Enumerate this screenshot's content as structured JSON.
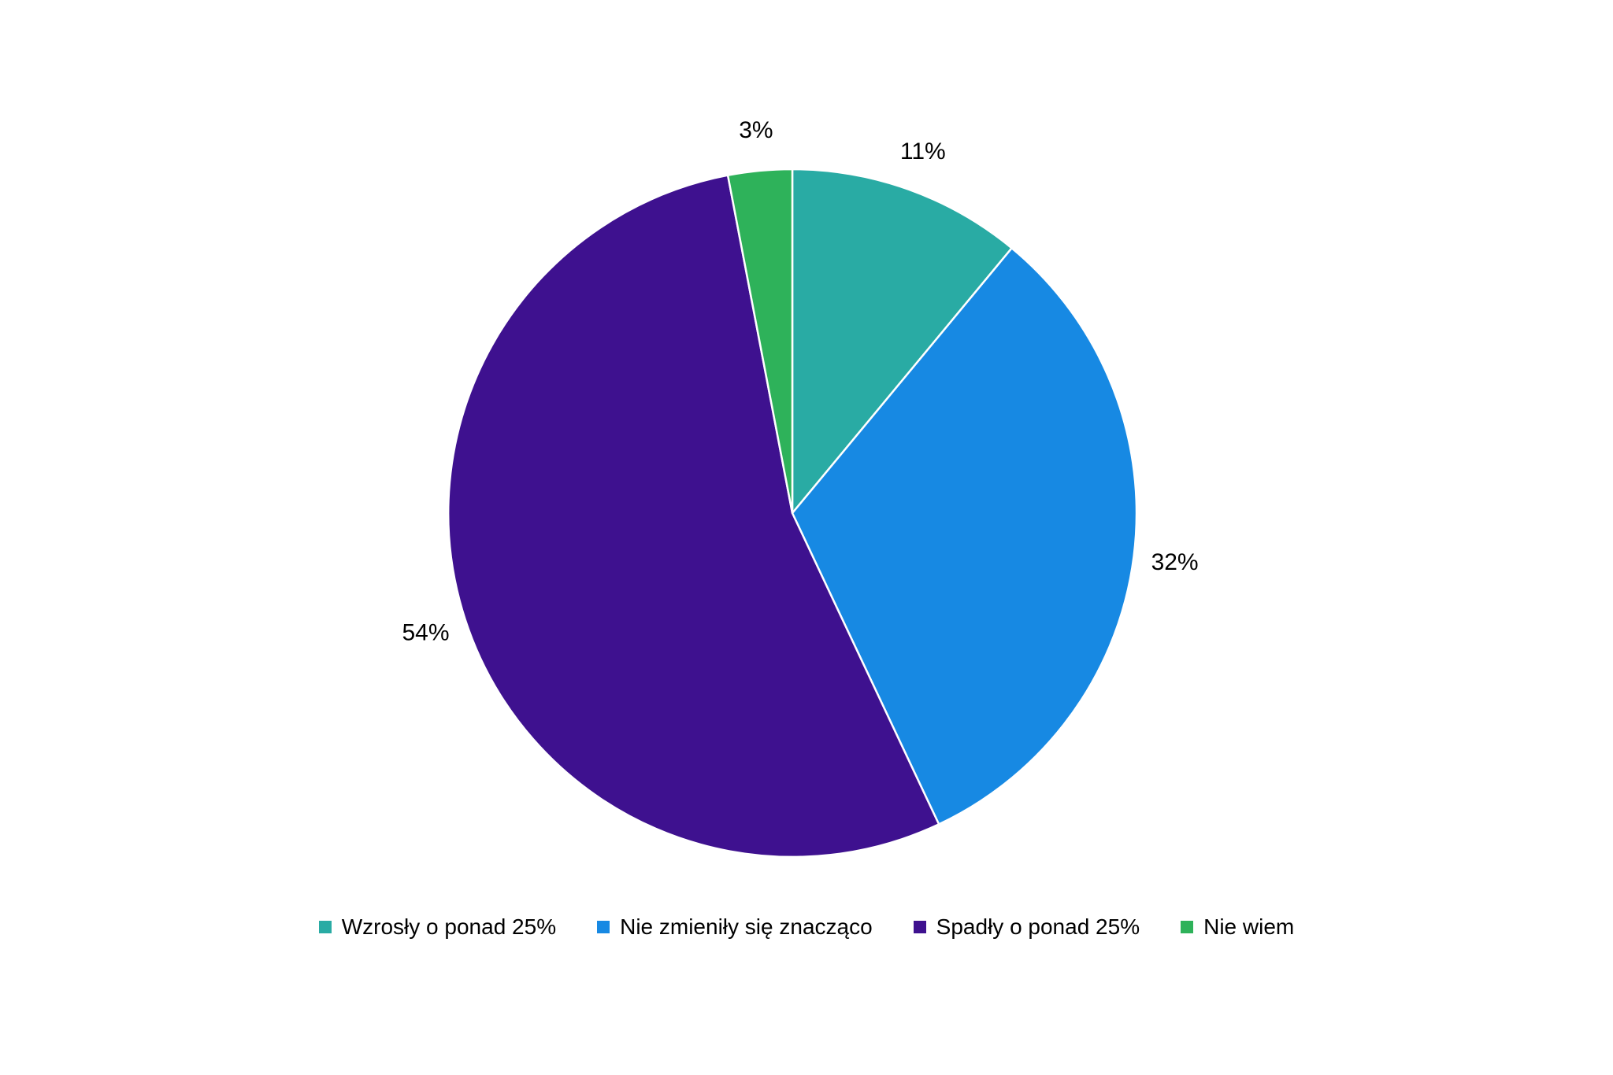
{
  "chart_data": {
    "type": "pie",
    "title": "",
    "categories": [
      "Wzrosły o ponad 25%",
      "Nie zmieniły się znacząco",
      "Spadły o ponad 25%",
      "Nie wiem"
    ],
    "values": [
      11,
      32,
      54,
      3
    ],
    "data_labels": [
      "11%",
      "32%",
      "54%",
      "3%"
    ],
    "colors": [
      "#29ABA4",
      "#1789E3",
      "#3E118F",
      "#2EB25A"
    ],
    "start_angle_deg": 0,
    "direction": "clockwise",
    "legend_position": "bottom",
    "label_placement": "outside"
  },
  "style": {
    "background": "#FFFFFF",
    "text_color": "#000000",
    "slice_border_color": "#FFFFFF"
  }
}
